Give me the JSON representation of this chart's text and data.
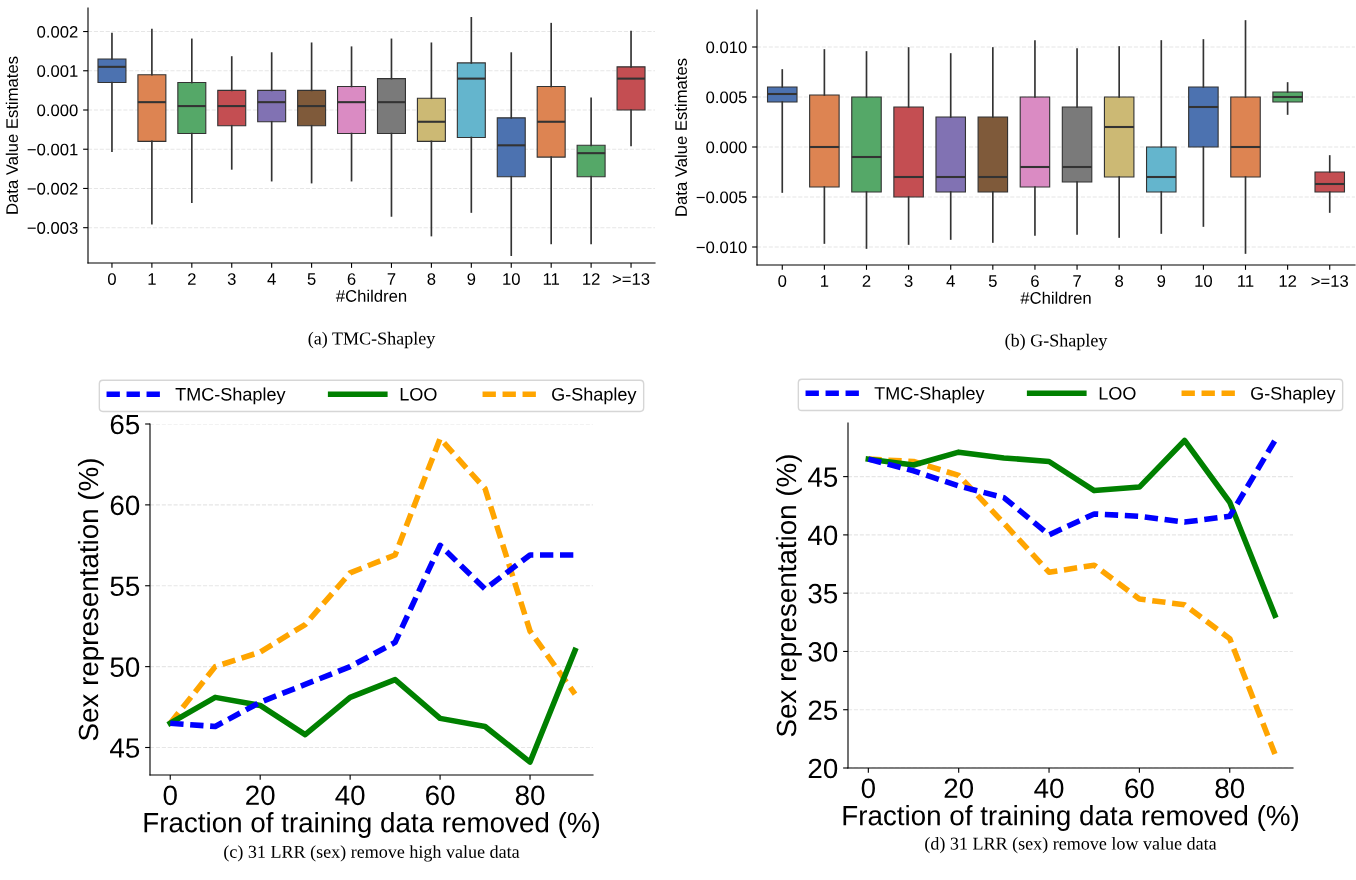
{
  "chart_data": [
    {
      "type": "box",
      "xlabel": "#Children",
      "ylabel": "Data Value Estimates",
      "annotations": [
        "(a) TMC-Shapley"
      ],
      "grid": "y",
      "categories": [
        "0",
        "1",
        "2",
        "3",
        "4",
        "5",
        "6",
        "7",
        "8",
        "9",
        "10",
        "11",
        "12",
        ">=13"
      ],
      "colors": [
        "#4c72b0",
        "#dd8452",
        "#55a868",
        "#c44e52",
        "#8172b3",
        "#7f5a3a",
        "#da8bc3",
        "#7a7a7a",
        "#ccb974",
        "#64b5cd",
        "#4c72b0",
        "#dd8452",
        "#55a868",
        "#c44e52"
      ],
      "boxes": [
        {
          "low": -0.00105,
          "q1": 0.0007,
          "median": 0.0011,
          "q3": 0.0013,
          "high": 0.00195
        },
        {
          "low": -0.0029,
          "q1": -0.0008,
          "median": 0.0002,
          "q3": 0.0009,
          "high": 0.00205
        },
        {
          "low": -0.00235,
          "q1": -0.0006,
          "median": 0.0001,
          "q3": 0.0007,
          "high": 0.0018
        },
        {
          "low": -0.0015,
          "q1": -0.0004,
          "median": 0.0001,
          "q3": 0.0005,
          "high": 0.00135
        },
        {
          "low": -0.0018,
          "q1": -0.0003,
          "median": 0.0002,
          "q3": 0.0005,
          "high": 0.00145
        },
        {
          "low": -0.00185,
          "q1": -0.0004,
          "median": 0.0001,
          "q3": 0.0005,
          "high": 0.0017
        },
        {
          "low": -0.0018,
          "q1": -0.0006,
          "median": 0.0002,
          "q3": 0.0006,
          "high": 0.0016
        },
        {
          "low": -0.0027,
          "q1": -0.0006,
          "median": 0.0002,
          "q3": 0.0008,
          "high": 0.0018
        },
        {
          "low": -0.0032,
          "q1": -0.0008,
          "median": -0.0003,
          "q3": 0.0003,
          "high": 0.0017
        },
        {
          "low": -0.0026,
          "q1": -0.0007,
          "median": 0.0008,
          "q3": 0.0012,
          "high": 0.00235
        },
        {
          "low": -0.0037,
          "q1": -0.0017,
          "median": -0.0009,
          "q3": -0.0002,
          "high": 0.00145
        },
        {
          "low": -0.0034,
          "q1": -0.0012,
          "median": -0.0003,
          "q3": 0.0006,
          "high": 0.0022
        },
        {
          "low": -0.0034,
          "q1": -0.0017,
          "median": -0.0011,
          "q3": -0.0009,
          "high": 0.0003
        },
        {
          "low": -0.0009,
          "q1": 0.0,
          "median": 0.0008,
          "q3": 0.0011,
          "high": 0.002
        }
      ],
      "ylim": [
        -0.0039,
        0.0026
      ],
      "yticks": [
        {
          "value": -0.003,
          "label": "−0.003"
        },
        {
          "value": -0.002,
          "label": "−0.002"
        },
        {
          "value": -0.001,
          "label": "−0.001"
        },
        {
          "value": 0.0,
          "label": "0.000"
        },
        {
          "value": 0.001,
          "label": "0.001"
        },
        {
          "value": 0.002,
          "label": "0.002"
        }
      ]
    },
    {
      "type": "box",
      "xlabel": "#Children",
      "ylabel": "Data Value Estimates",
      "annotations": [
        "(b) G-Shapley"
      ],
      "grid": "y",
      "categories": [
        "0",
        "1",
        "2",
        "3",
        "4",
        "5",
        "6",
        "7",
        "8",
        "9",
        "10",
        "11",
        "12",
        ">=13"
      ],
      "colors": [
        "#4c72b0",
        "#dd8452",
        "#55a868",
        "#c44e52",
        "#8172b3",
        "#7f5a3a",
        "#da8bc3",
        "#7a7a7a",
        "#ccb974",
        "#64b5cd",
        "#4c72b0",
        "#dd8452",
        "#55a868",
        "#c44e52"
      ],
      "boxes": [
        {
          "low": -0.0045,
          "q1": 0.0045,
          "median": 0.0053,
          "q3": 0.006,
          "high": 0.0077
        },
        {
          "low": -0.0096,
          "q1": -0.004,
          "median": 0.0,
          "q3": 0.0052,
          "high": 0.0097
        },
        {
          "low": -0.0101,
          "q1": -0.0045,
          "median": -0.001,
          "q3": 0.005,
          "high": 0.0095
        },
        {
          "low": -0.0097,
          "q1": -0.005,
          "median": -0.003,
          "q3": 0.004,
          "high": 0.0099
        },
        {
          "low": -0.0092,
          "q1": -0.0045,
          "median": -0.003,
          "q3": 0.003,
          "high": 0.0093
        },
        {
          "low": -0.0095,
          "q1": -0.0045,
          "median": -0.003,
          "q3": 0.003,
          "high": 0.0099
        },
        {
          "low": -0.0088,
          "q1": -0.004,
          "median": -0.002,
          "q3": 0.005,
          "high": 0.0106
        },
        {
          "low": -0.0087,
          "q1": -0.0035,
          "median": -0.002,
          "q3": 0.004,
          "high": 0.0098
        },
        {
          "low": -0.009,
          "q1": -0.003,
          "median": 0.002,
          "q3": 0.005,
          "high": 0.01
        },
        {
          "low": -0.0086,
          "q1": -0.0045,
          "median": -0.003,
          "q3": 0.0,
          "high": 0.0106
        },
        {
          "low": -0.0079,
          "q1": 0.0,
          "median": 0.004,
          "q3": 0.006,
          "high": 0.0107
        },
        {
          "low": -0.0106,
          "q1": -0.003,
          "median": 0.0,
          "q3": 0.005,
          "high": 0.0126
        },
        {
          "low": 0.0033,
          "q1": 0.0045,
          "median": 0.005,
          "q3": 0.0055,
          "high": 0.0064
        },
        {
          "low": -0.0065,
          "q1": -0.0045,
          "median": -0.0037,
          "q3": -0.0025,
          "high": -0.0009
        }
      ],
      "ylim": [
        -0.0118,
        0.0137
      ],
      "yticks": [
        {
          "value": -0.01,
          "label": "−0.010"
        },
        {
          "value": -0.005,
          "label": "−0.005"
        },
        {
          "value": 0.0,
          "label": "0.000"
        },
        {
          "value": 0.005,
          "label": "0.005"
        },
        {
          "value": 0.01,
          "label": "0.010"
        }
      ]
    },
    {
      "type": "line",
      "xlabel": "Fraction of training data removed (%)",
      "ylabel": "Sex representation (%)",
      "annotations": [
        "(c) 31 LRR (sex) remove high value data"
      ],
      "grid": "y",
      "legend": "top",
      "x": [
        0,
        10,
        20,
        30,
        40,
        50,
        60,
        70,
        80,
        90
      ],
      "series": [
        {
          "name": "TMC-Shapley",
          "color": "#0000ff",
          "line_style": "dashed",
          "values": [
            46.5,
            46.3,
            47.8,
            48.9,
            50.0,
            51.5,
            57.5,
            54.8,
            56.9,
            56.9
          ]
        },
        {
          "name": "LOO",
          "color": "#008000",
          "line_style": "solid",
          "values": [
            46.5,
            48.1,
            47.6,
            45.8,
            48.1,
            49.2,
            46.8,
            46.3,
            44.1,
            51.0
          ]
        },
        {
          "name": "G-Shapley",
          "color": "#ffa500",
          "line_style": "dashed",
          "values": [
            46.5,
            50.0,
            50.9,
            52.6,
            55.8,
            56.9,
            64.1,
            61.0,
            52.2,
            48.3
          ]
        }
      ],
      "xlim": [
        -4.5,
        94
      ],
      "xticks": [
        0,
        20,
        40,
        60,
        80
      ],
      "ylim": [
        43.3,
        65
      ],
      "yticks": [
        45,
        50,
        55,
        60,
        65
      ]
    },
    {
      "type": "line",
      "xlabel": "Fraction of training data removed (%)",
      "ylabel": "Sex representation (%)",
      "annotations": [
        "(d) 31 LRR (sex) remove low value data"
      ],
      "grid": "y",
      "legend": "top",
      "x": [
        0,
        10,
        20,
        30,
        40,
        50,
        60,
        70,
        80,
        90
      ],
      "series": [
        {
          "name": "TMC-Shapley",
          "color": "#0000ff",
          "line_style": "dashed",
          "values": [
            46.5,
            45.5,
            44.2,
            43.2,
            40.0,
            41.8,
            41.6,
            41.1,
            41.6,
            48.1
          ]
        },
        {
          "name": "LOO",
          "color": "#008000",
          "line_style": "solid",
          "values": [
            46.5,
            46.0,
            47.1,
            46.6,
            46.3,
            43.8,
            44.1,
            48.1,
            42.8,
            33.1
          ]
        },
        {
          "name": "G-Shapley",
          "color": "#ffa500",
          "line_style": "dashed",
          "values": [
            46.5,
            46.3,
            45.1,
            41.0,
            36.8,
            37.4,
            34.5,
            34.0,
            31.1,
            21.2
          ]
        }
      ],
      "xlim": [
        -4.5,
        94
      ],
      "xticks": [
        0,
        20,
        40,
        60,
        80
      ],
      "ylim": [
        20,
        49.6
      ],
      "yticks": [
        20,
        25,
        30,
        35,
        40,
        45
      ]
    }
  ]
}
